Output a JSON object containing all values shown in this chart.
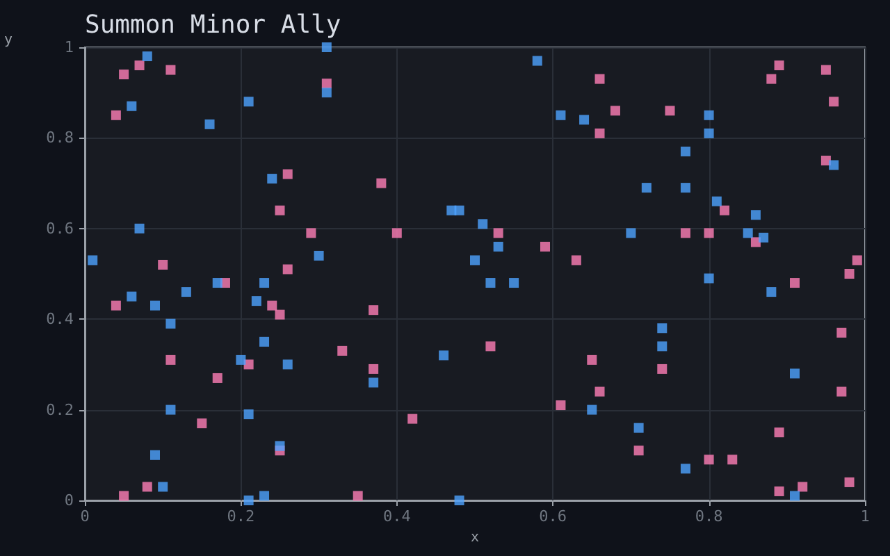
{
  "chart_data": {
    "type": "scatter",
    "title": "Summon Minor Ally",
    "xlabel": "x",
    "ylabel": "y",
    "xlim": [
      0,
      1
    ],
    "ylim": [
      0,
      1
    ],
    "xticks": [
      0,
      0.2,
      0.4,
      0.6,
      0.8,
      1
    ],
    "yticks": [
      0,
      0.2,
      0.4,
      0.6,
      0.8,
      1
    ],
    "grid": true,
    "marker": "square",
    "series": [
      {
        "color": "#4da3ff",
        "x": [
          0.01,
          0.06,
          0.08,
          0.07,
          0.06,
          0.09,
          0.11,
          0.13,
          0.16,
          0.17,
          0.11,
          0.09,
          0.1,
          0.21,
          0.2,
          0.21,
          0.22,
          0.23,
          0.23,
          0.21,
          0.23,
          0.24,
          0.25,
          0.26,
          0.31,
          0.31,
          0.3,
          0.37,
          0.46,
          0.48,
          0.47,
          0.48,
          0.5,
          0.52,
          0.51,
          0.53,
          0.55,
          0.58,
          0.61,
          0.64,
          0.65,
          0.7,
          0.72,
          0.71,
          0.74,
          0.74,
          0.77,
          0.77,
          0.77,
          0.8,
          0.8,
          0.8,
          0.81,
          0.86,
          0.85,
          0.87,
          0.88,
          0.91,
          0.91,
          0.96
        ],
        "values": [
          0.53,
          0.87,
          0.98,
          0.6,
          0.45,
          0.43,
          0.39,
          0.46,
          0.83,
          0.48,
          0.2,
          0.1,
          0.03,
          0.88,
          0.31,
          0.19,
          0.44,
          0.48,
          0.35,
          0.0,
          0.01,
          0.71,
          0.12,
          0.3,
          1.0,
          0.9,
          0.54,
          0.26,
          0.32,
          0.0,
          0.64,
          0.64,
          0.53,
          0.48,
          0.61,
          0.56,
          0.48,
          0.97,
          0.85,
          0.84,
          0.2,
          0.59,
          0.69,
          0.16,
          0.38,
          0.34,
          0.07,
          0.77,
          0.69,
          0.85,
          0.81,
          0.49,
          0.66,
          0.63,
          0.59,
          0.58,
          0.46,
          0.28,
          0.01,
          0.74
        ]
      },
      {
        "color": "#ff7eb6",
        "x": [
          0.05,
          0.07,
          0.11,
          0.04,
          0.31,
          0.26,
          0.25,
          0.38,
          0.4,
          0.29,
          0.1,
          0.26,
          0.66,
          0.89,
          0.88,
          0.95,
          0.96,
          0.68,
          0.75,
          0.66,
          0.95,
          0.82,
          0.53,
          0.77,
          0.8,
          0.86,
          0.59,
          0.63,
          0.99,
          0.98,
          0.18,
          0.04,
          0.24,
          0.25,
          0.37,
          0.33,
          0.11,
          0.21,
          0.37,
          0.17,
          0.42,
          0.15,
          0.25,
          0.08,
          0.05,
          0.35,
          0.91,
          0.97,
          0.52,
          0.65,
          0.74,
          0.66,
          0.97,
          0.61,
          0.89,
          0.71,
          0.8,
          0.83,
          0.89,
          0.92,
          0.98
        ],
        "values": [
          0.94,
          0.96,
          0.95,
          0.85,
          0.92,
          0.72,
          0.64,
          0.7,
          0.59,
          0.59,
          0.52,
          0.51,
          0.93,
          0.96,
          0.93,
          0.95,
          0.88,
          0.86,
          0.86,
          0.81,
          0.75,
          0.64,
          0.59,
          0.59,
          0.59,
          0.57,
          0.56,
          0.53,
          0.53,
          0.5,
          0.48,
          0.43,
          0.43,
          0.41,
          0.42,
          0.33,
          0.31,
          0.3,
          0.29,
          0.27,
          0.18,
          0.17,
          0.11,
          0.03,
          0.01,
          0.01,
          0.48,
          0.37,
          0.34,
          0.31,
          0.29,
          0.24,
          0.24,
          0.21,
          0.15,
          0.11,
          0.09,
          0.09,
          0.02,
          0.03,
          0.04
        ]
      }
    ]
  }
}
